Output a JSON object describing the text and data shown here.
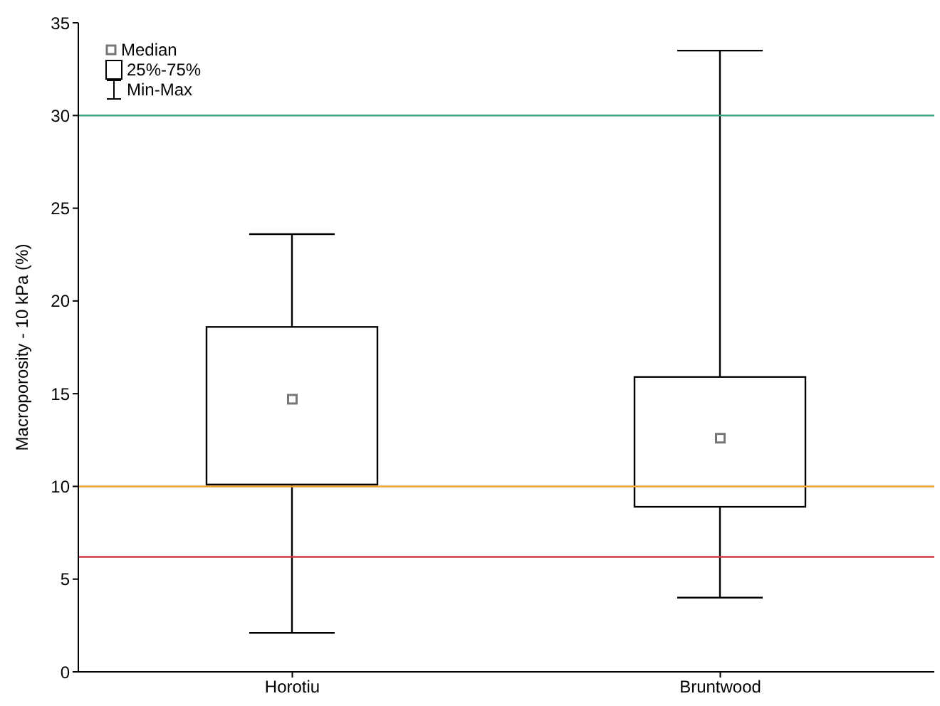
{
  "chart_data": {
    "type": "box",
    "ylabel": "Macroporosity - 10 kPa (%)",
    "categories": [
      "Horotiu",
      "Bruntwood"
    ],
    "boxes": [
      {
        "low": 2.1,
        "q1": 10.1,
        "median": 14.7,
        "q3": 18.6,
        "high": 23.6
      },
      {
        "low": 4.0,
        "q1": 8.9,
        "median": 12.6,
        "q3": 15.9,
        "high": 33.5
      }
    ],
    "color": "#000000",
    "ylim": [
      0,
      35
    ],
    "yticks": [
      0,
      5,
      10,
      15,
      20,
      25,
      30,
      35
    ],
    "ref_lines": [
      {
        "axis": "y",
        "value": 30,
        "label": null,
        "color": "#3aa47f"
      },
      {
        "axis": "y",
        "value": 10,
        "label": null,
        "color": "#f0a030"
      },
      {
        "axis": "y",
        "value": 6.2,
        "label": null,
        "color": "#d03848"
      }
    ],
    "annotations": [
      "Median",
      "25%-75%",
      "Min-Max"
    ],
    "grid": false
  }
}
